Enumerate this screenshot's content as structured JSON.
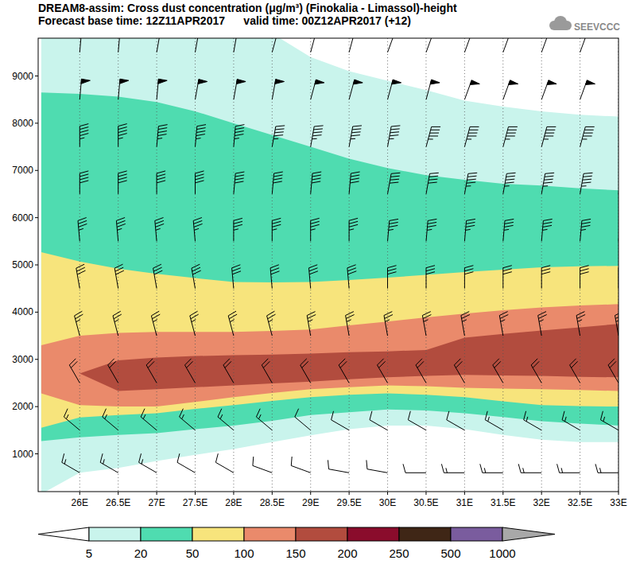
{
  "chart_data": {
    "type": "contour",
    "title": "DREAM8-assim: Cross dust concentration (μg/m³) (Finokalia - Limassol)-height",
    "subtitle": "Forecast base time: 12Z11APR2017      valid time: 00Z12APR2017 (+12)",
    "logo": "SEEVCCC",
    "xlim": [
      25.46,
      33
    ],
    "ylim": [
      200,
      9800
    ],
    "xticks": [
      {
        "value": 26,
        "label": "26E"
      },
      {
        "value": 26.5,
        "label": "26.5E"
      },
      {
        "value": 27,
        "label": "27E"
      },
      {
        "value": 27.5,
        "label": "27.5E"
      },
      {
        "value": 28,
        "label": "28E"
      },
      {
        "value": 28.5,
        "label": "28.5E"
      },
      {
        "value": 29,
        "label": "29E"
      },
      {
        "value": 29.5,
        "label": "29.5E"
      },
      {
        "value": 30,
        "label": "30E"
      },
      {
        "value": 30.5,
        "label": "30.5E"
      },
      {
        "value": 31,
        "label": "31E"
      },
      {
        "value": 31.5,
        "label": "31.5E"
      },
      {
        "value": 32,
        "label": "32E"
      },
      {
        "value": 32.5,
        "label": "32.5E"
      },
      {
        "value": 33,
        "label": "33E"
      }
    ],
    "yticks": [
      1000,
      2000,
      3000,
      4000,
      5000,
      6000,
      7000,
      8000,
      9000
    ],
    "grid": true,
    "x": [
      25.5,
      26,
      26.5,
      27,
      27.5,
      28,
      28.5,
      29,
      29.5,
      30,
      30.5,
      31,
      31.5,
      32,
      32.5,
      33
    ],
    "bands": [
      {
        "level": 5,
        "lower": [
          150,
          600,
          700,
          850,
          980,
          1100,
          1250,
          1390,
          1520,
          1600,
          1600,
          1520,
          1400,
          1300,
          1250,
          1250
        ],
        "upper": [
          9900,
          9900,
          9900,
          9900,
          9900,
          9900,
          9900,
          9400,
          9100,
          8900,
          8700,
          8480,
          8350,
          8250,
          8180,
          8140
        ]
      },
      {
        "level": 20,
        "lower": [
          1270,
          1350,
          1400,
          1440,
          1520,
          1600,
          1700,
          1820,
          1880,
          1940,
          1920,
          1860,
          1780,
          1690,
          1640,
          1600
        ],
        "upper": [
          8650,
          8620,
          8560,
          8450,
          8250,
          8000,
          7750,
          7500,
          7250,
          7050,
          6900,
          6800,
          6720,
          6680,
          6620,
          6580
        ]
      },
      {
        "level": 50,
        "lower": [
          1550,
          1770,
          1820,
          1860,
          1950,
          2030,
          2120,
          2200,
          2250,
          2280,
          2250,
          2200,
          2110,
          2030,
          2010,
          2000
        ],
        "upper": [
          5270,
          5070,
          4920,
          4810,
          4720,
          4640,
          4630,
          4640,
          4680,
          4730,
          4790,
          4850,
          4900,
          4950,
          4970,
          4980
        ]
      },
      {
        "level": 100,
        "lower": [
          2280,
          2030,
          2000,
          2000,
          2100,
          2200,
          2290,
          2370,
          2410,
          2450,
          2430,
          2400,
          2380,
          2370,
          2350,
          2330
        ],
        "upper": [
          3300,
          3500,
          3560,
          3580,
          3580,
          3580,
          3600,
          3630,
          3720,
          3800,
          3890,
          3970,
          4040,
          4100,
          4140,
          4170
        ]
      },
      {
        "level": 150,
        "lower": [
          null,
          2700,
          2330,
          2370,
          2410,
          2450,
          2490,
          2530,
          2580,
          2620,
          2650,
          2670,
          2660,
          2650,
          2630,
          2620
        ],
        "upper": [
          null,
          2700,
          2980,
          3040,
          3070,
          3090,
          3100,
          3120,
          3150,
          3170,
          3200,
          3460,
          3540,
          3610,
          3680,
          3750
        ]
      }
    ],
    "colorbar": {
      "levels": [
        5,
        20,
        50,
        100,
        150,
        200,
        250,
        500,
        1000
      ],
      "colors": [
        "#ffffff",
        "#c9f4ec",
        "#4fdcb0",
        "#f7e47c",
        "#ea8a6b",
        "#b24c3e",
        "#8a0c2c",
        "#3f2616",
        "#7a5c9e",
        "#a8a8a8"
      ]
    },
    "wind": {
      "x": [
        26,
        26.5,
        27,
        27.5,
        28,
        28.5,
        29,
        29.5,
        30,
        30.5,
        31,
        31.5,
        32,
        32.5,
        33
      ],
      "heights": [
        600,
        1500,
        2500,
        3500,
        4500,
        5500,
        6500,
        7500,
        8500,
        9500
      ],
      "speed": [
        [
          15,
          15,
          15,
          10,
          10,
          10,
          10,
          10,
          10,
          10,
          15,
          15,
          15,
          15,
          15
        ],
        [
          15,
          15,
          15,
          15,
          15,
          15,
          10,
          10,
          10,
          10,
          10,
          15,
          15,
          15,
          15
        ],
        [
          20,
          20,
          20,
          20,
          20,
          20,
          20,
          20,
          20,
          20,
          20,
          20,
          20,
          20,
          20
        ],
        [
          25,
          25,
          25,
          25,
          25,
          25,
          25,
          25,
          25,
          25,
          25,
          25,
          25,
          25,
          25
        ],
        [
          30,
          30,
          30,
          30,
          30,
          30,
          30,
          30,
          30,
          30,
          30,
          30,
          30,
          30,
          30
        ],
        [
          35,
          35,
          35,
          35,
          35,
          35,
          35,
          35,
          35,
          35,
          35,
          35,
          35,
          35,
          35
        ],
        [
          40,
          40,
          40,
          40,
          40,
          40,
          40,
          40,
          40,
          40,
          45,
          45,
          45,
          45,
          45
        ],
        [
          45,
          45,
          45,
          45,
          45,
          45,
          45,
          45,
          45,
          45,
          45,
          45,
          45,
          45,
          45
        ],
        [
          50,
          50,
          50,
          50,
          50,
          50,
          50,
          50,
          50,
          50,
          50,
          50,
          50,
          50,
          50
        ],
        [
          50,
          50,
          50,
          50,
          50,
          50,
          50,
          50,
          50,
          50,
          50,
          50,
          50,
          50,
          50
        ]
      ],
      "direction": [
        [
          300,
          300,
          300,
          300,
          300,
          290,
          290,
          280,
          280,
          270,
          270,
          270,
          270,
          270,
          270
        ],
        [
          310,
          310,
          310,
          310,
          310,
          310,
          310,
          300,
          300,
          300,
          300,
          300,
          300,
          300,
          300
        ],
        [
          330,
          330,
          330,
          330,
          330,
          330,
          330,
          330,
          330,
          330,
          330,
          330,
          330,
          330,
          330
        ],
        [
          345,
          345,
          345,
          345,
          345,
          345,
          350,
          350,
          350,
          350,
          350,
          350,
          350,
          350,
          350
        ],
        [
          350,
          350,
          350,
          350,
          355,
          355,
          355,
          355,
          0,
          0,
          0,
          0,
          0,
          0,
          0
        ],
        [
          355,
          355,
          355,
          355,
          0,
          0,
          0,
          0,
          5,
          5,
          5,
          5,
          5,
          5,
          5
        ],
        [
          0,
          0,
          0,
          0,
          5,
          5,
          5,
          5,
          10,
          10,
          10,
          10,
          10,
          10,
          10
        ],
        [
          0,
          0,
          5,
          5,
          5,
          10,
          10,
          10,
          10,
          15,
          15,
          15,
          15,
          15,
          15
        ],
        [
          5,
          5,
          5,
          10,
          10,
          10,
          15,
          15,
          15,
          15,
          20,
          20,
          20,
          20,
          20
        ],
        [
          5,
          5,
          10,
          10,
          10,
          15,
          15,
          15,
          20,
          20,
          20,
          20,
          20,
          20,
          20
        ]
      ]
    }
  }
}
